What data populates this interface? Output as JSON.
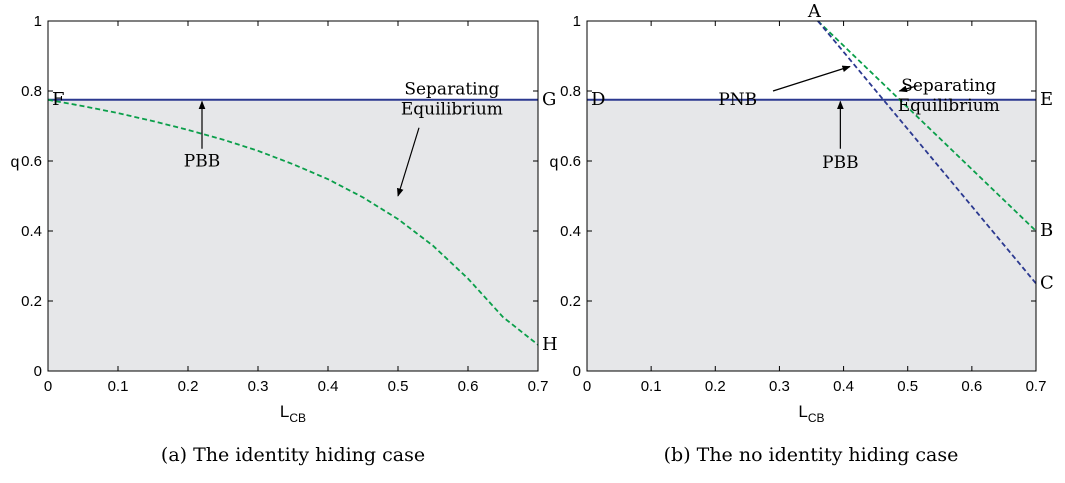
{
  "chart_data": [
    {
      "panel": "a",
      "type": "line",
      "caption": "(a) The identity hiding case",
      "xlabel": {
        "main": "L",
        "sub": "CB"
      },
      "ylabel": "q",
      "xlim": [
        0,
        0.7
      ],
      "ylim": [
        0,
        1
      ],
      "xticks": [
        "0",
        "0.1",
        "0.2",
        "0.3",
        "0.4",
        "0.5",
        "0.6",
        "0.7"
      ],
      "yticks": [
        "0",
        "0.2",
        "0.4",
        "0.6",
        "0.8",
        "1"
      ],
      "grid": false,
      "shaded_region": {
        "below": 0.775,
        "color": "#e6e7e9"
      },
      "series": [
        {
          "style": "solid",
          "color": "#2b3990",
          "x": [
            0,
            0.7
          ],
          "y": [
            0.775,
            0.775
          ]
        },
        {
          "style": "dashed",
          "color": "#0a9f4a",
          "x": [
            0,
            0.05,
            0.1,
            0.15,
            0.2,
            0.25,
            0.3,
            0.35,
            0.4,
            0.45,
            0.5,
            0.55,
            0.6,
            0.65,
            0.7
          ],
          "y": [
            0.775,
            0.757,
            0.737,
            0.714,
            0.689,
            0.661,
            0.629,
            0.591,
            0.548,
            0.496,
            0.434,
            0.358,
            0.264,
            0.154,
            0.075
          ]
        }
      ],
      "points": [
        {
          "label": "F",
          "x": 0,
          "y": 0.775,
          "side": "right"
        },
        {
          "label": "G",
          "x": 0.7,
          "y": 0.775,
          "side": "right"
        },
        {
          "label": "H",
          "x": 0.7,
          "y": 0.075,
          "side": "right"
        }
      ],
      "annotations": [
        {
          "lines": [
            "Separating",
            "Equilibrium"
          ],
          "text_x": 0.577,
          "text_y": 0.79,
          "arrow_from": [
            0.53,
            0.695
          ],
          "arrow_to": [
            0.5,
            0.5
          ]
        },
        {
          "lines": [
            "PBB"
          ],
          "text_x": 0.22,
          "text_y": 0.585,
          "arrow_from": [
            0.22,
            0.635
          ],
          "arrow_to": [
            0.22,
            0.77
          ]
        }
      ]
    },
    {
      "panel": "b",
      "type": "line",
      "caption": "(b) The no identity hiding case",
      "xlabel": {
        "main": "L",
        "sub": "CB"
      },
      "ylabel": "q",
      "xlim": [
        0,
        0.7
      ],
      "ylim": [
        0,
        1
      ],
      "xticks": [
        "0",
        "0.1",
        "0.2",
        "0.3",
        "0.4",
        "0.5",
        "0.6",
        "0.7"
      ],
      "yticks": [
        "0",
        "0.2",
        "0.4",
        "0.6",
        "0.8",
        "1"
      ],
      "grid": false,
      "shaded_region": {
        "below": 0.775,
        "color": "#e6e7e9"
      },
      "series": [
        {
          "style": "solid",
          "color": "#2b3990",
          "x": [
            0,
            0.7
          ],
          "y": [
            0.775,
            0.775
          ]
        },
        {
          "style": "dashed",
          "color": "#0a9f4a",
          "x": [
            0.36,
            0.7
          ],
          "y": [
            1.0,
            0.4
          ]
        },
        {
          "style": "dashed",
          "color": "#2b3990",
          "x": [
            0.36,
            0.7
          ],
          "y": [
            1.0,
            0.25
          ]
        }
      ],
      "points": [
        {
          "label": "A",
          "x": 0.36,
          "y": 1.0,
          "side": "top"
        },
        {
          "label": "B",
          "x": 0.7,
          "y": 0.4,
          "side": "right"
        },
        {
          "label": "C",
          "x": 0.7,
          "y": 0.25,
          "side": "right"
        },
        {
          "label": "D",
          "x": 0,
          "y": 0.775,
          "side": "right"
        },
        {
          "label": "E",
          "x": 0.7,
          "y": 0.775,
          "side": "right"
        }
      ],
      "annotations": [
        {
          "lines": [
            "Separating",
            "Equilibrium"
          ],
          "text_x": 0.564,
          "text_y": 0.8,
          "arrow_from": [
            0.515,
            0.815
          ],
          "arrow_to": [
            0.487,
            0.8
          ]
        },
        {
          "lines": [
            "PNB"
          ],
          "text_x": 0.235,
          "text_y": 0.76,
          "arrow_from": [
            0.29,
            0.8
          ],
          "arrow_to": [
            0.41,
            0.87
          ]
        },
        {
          "lines": [
            "PBB"
          ],
          "text_x": 0.395,
          "text_y": 0.58,
          "arrow_from": [
            0.395,
            0.635
          ],
          "arrow_to": [
            0.395,
            0.77
          ]
        }
      ]
    }
  ]
}
